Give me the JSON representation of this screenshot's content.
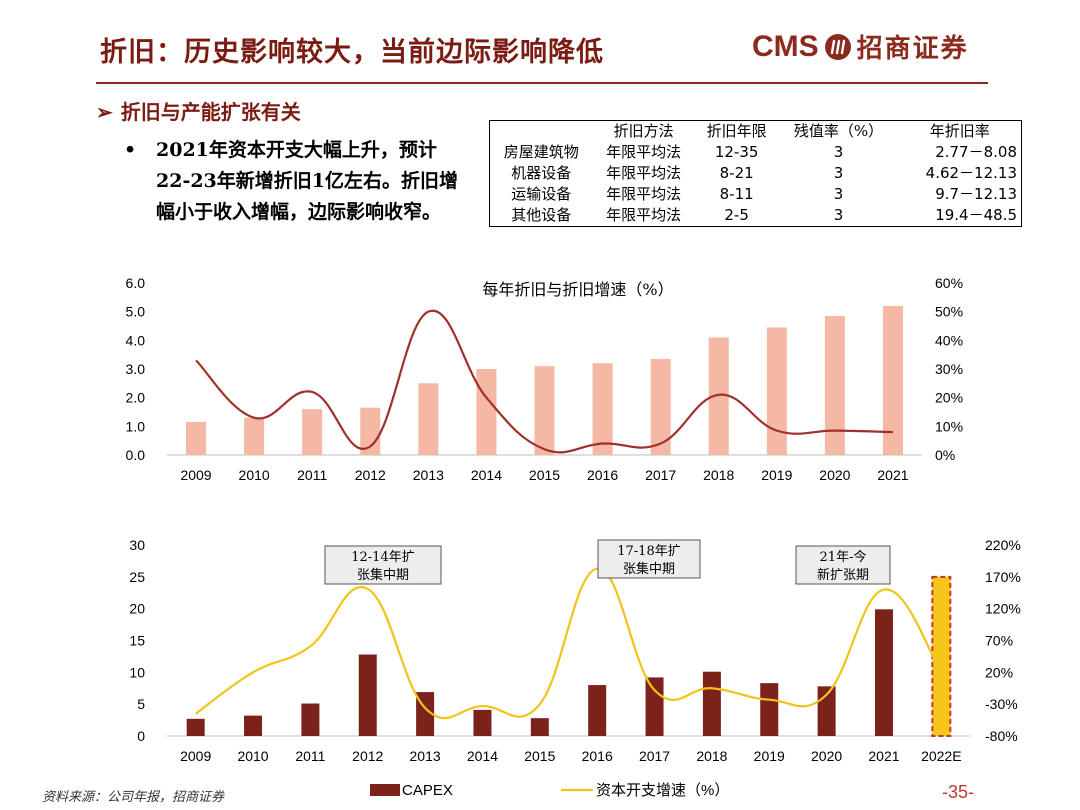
{
  "header": {
    "title": "折旧：历史影响较大，当前边际影响降低",
    "logo_cms": "CMS",
    "logo_cn": "招商证券",
    "colors": {
      "brand": "#8b2a1d",
      "rule": "#8b2a1d"
    }
  },
  "section": {
    "heading": "折旧与产能扩张有关"
  },
  "bullet": {
    "text": "2021年资本开支大幅上升，预计22-23年新增折旧1亿左右。折旧增幅小于收入增幅，边际影响收窄。"
  },
  "table": {
    "headers": [
      "",
      "折旧方法",
      "折旧年限",
      "残值率（%）",
      "年折旧率"
    ],
    "rows": [
      [
        "房屋建筑物",
        "年限平均法",
        "12-35",
        "3",
        "2.77－8.08"
      ],
      [
        "机器设备",
        "年限平均法",
        "8-21",
        "3",
        "4.62－12.13"
      ],
      [
        "运输设备",
        "年限平均法",
        "8-11",
        "3",
        "9.7－12.13"
      ],
      [
        "其他设备",
        "年限平均法",
        "2-5",
        "3",
        "19.4－48.5"
      ]
    ]
  },
  "chart_data": [
    {
      "type": "bar",
      "title": "每年折旧与折旧增速（%）",
      "categories": [
        "2009",
        "2010",
        "2011",
        "2012",
        "2013",
        "2014",
        "2015",
        "2016",
        "2017",
        "2018",
        "2019",
        "2020",
        "2021"
      ],
      "series": [
        {
          "type": "bar",
          "axis": "left",
          "values": [
            1.15,
            1.3,
            1.6,
            1.65,
            2.5,
            3.0,
            3.1,
            3.2,
            3.35,
            4.1,
            4.45,
            4.85,
            5.2
          ],
          "color": "#f4b8a4"
        },
        {
          "type": "line",
          "axis": "right",
          "values": [
            33,
            13,
            22,
            3,
            50,
            20,
            2,
            4,
            4,
            21,
            8.5,
            8.5,
            8
          ],
          "color": "#a0302a"
        }
      ],
      "left_axis": {
        "range": [
          0,
          6
        ],
        "ticks": [
          "0.0",
          "1.0",
          "2.0",
          "3.0",
          "4.0",
          "5.0",
          "6.0"
        ]
      },
      "right_axis": {
        "range": [
          0,
          60
        ],
        "ticks": [
          "0%",
          "10%",
          "20%",
          "30%",
          "40%",
          "50%",
          "60%"
        ]
      },
      "legend": "none"
    },
    {
      "type": "bar",
      "categories": [
        "2009",
        "2010",
        "2011",
        "2012",
        "2013",
        "2014",
        "2015",
        "2016",
        "2017",
        "2018",
        "2019",
        "2020",
        "2021",
        "2022E"
      ],
      "series": [
        {
          "name": "CAPEX",
          "type": "bar",
          "axis": "left",
          "values": [
            2.7,
            3.2,
            5.1,
            12.8,
            6.9,
            4.1,
            2.8,
            8.0,
            9.2,
            10.1,
            8.3,
            7.8,
            19.9,
            25
          ],
          "color": "#7b231a",
          "highlight_color": "#f5c518"
        },
        {
          "name": "资本开支增速（%）",
          "type": "line",
          "axis": "right",
          "values": [
            -45,
            20,
            61,
            151,
            -36,
            -33,
            -30,
            183,
            -8,
            -5,
            -23,
            -15,
            150,
            20
          ],
          "color": "#f0c419"
        }
      ],
      "left_axis": {
        "range": [
          0,
          30
        ],
        "ticks": [
          "0",
          "5",
          "10",
          "15",
          "20",
          "25",
          "30"
        ]
      },
      "right_axis": {
        "range": [
          -80,
          220
        ],
        "ticks": [
          "-80%",
          "-30%",
          "20%",
          "70%",
          "120%",
          "170%",
          "220%"
        ]
      },
      "annotations": [
        {
          "text": [
            "12-14年扩",
            "张集中期"
          ]
        },
        {
          "text": [
            "17-18年扩",
            "张集中期"
          ]
        },
        {
          "text": [
            "21年-今",
            "新扩张期"
          ]
        }
      ],
      "legend": "bottom"
    }
  ],
  "footer": {
    "source": "资料来源：公司年报，招商证券",
    "page": "-35-"
  }
}
